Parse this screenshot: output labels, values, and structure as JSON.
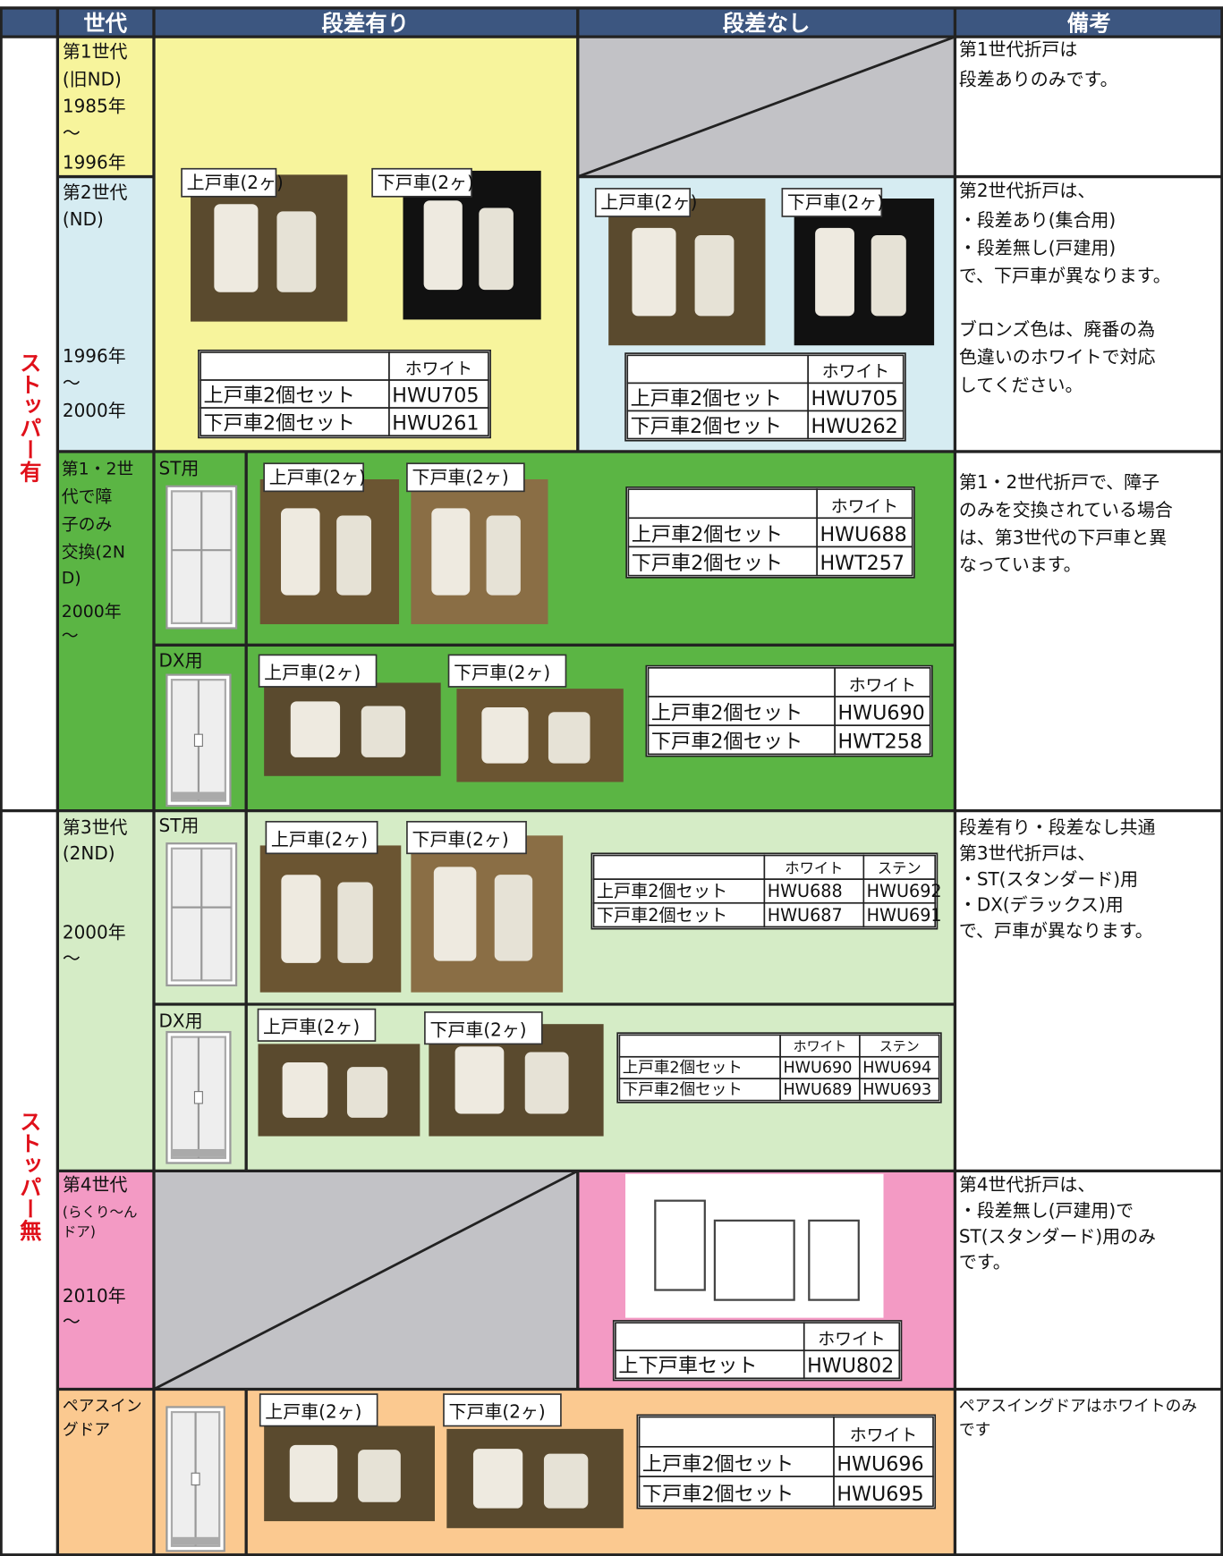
{
  "header": {
    "generation": "世代",
    "with_step": "段差有り",
    "without_step": "段差なし",
    "remarks": "備考"
  },
  "stopper": [
    "ストッパー有",
    "ストッパー無"
  ],
  "rows": [
    {
      "generation": [
        "第1世代",
        "(旧ND)",
        "1985年",
        "〜",
        "1996年"
      ],
      "remarks": [
        "第1世代折戸は",
        "段差ありのみです。"
      ]
    },
    {
      "generation": [
        "第2世代",
        "(ND)",
        "1996年",
        "〜",
        "2000年"
      ],
      "remarks": [
        "第2世代折戸は、",
        "・段差あり(集合用)",
        "・段差無し(戸建用)",
        "で、下戸車が異なります。",
        "ブロンズ色は、廃番の為",
        "色違いのホワイトで対応",
        "してください。"
      ],
      "with_step": {
        "labels": [
          "上戸車(2ヶ)",
          "下戸車(2ヶ)"
        ],
        "table": {
          "columns": [
            "ホワイト"
          ],
          "rows": [
            [
              "上戸車2個セット",
              "HWU705"
            ],
            [
              "下戸車2個セット",
              "HWU261"
            ]
          ]
        }
      },
      "without_step": {
        "labels": [
          "上戸車(2ヶ)",
          "下戸車(2ヶ)"
        ],
        "table": {
          "columns": [
            "ホワイト"
          ],
          "rows": [
            [
              "上戸車2個セット",
              "HWU705"
            ],
            [
              "下戸車2個セット",
              "HWU262"
            ]
          ]
        }
      }
    },
    {
      "generation": [
        "第1・2世",
        "代で障",
        "子のみ",
        "交換(2N",
        "D)",
        "2000年",
        "〜"
      ],
      "remarks": [
        "第1・2世代折戸で、障子",
        "のみを交換されている場合",
        "は、第3世代の下戸車と異",
        "なっています。"
      ],
      "variants": [
        {
          "name": "ST用",
          "labels": [
            "上戸車(2ヶ)",
            "下戸車(2ヶ)"
          ],
          "table": {
            "columns": [
              "ホワイト"
            ],
            "rows": [
              [
                "上戸車2個セット",
                "HWU688"
              ],
              [
                "下戸車2個セット",
                "HWT257"
              ]
            ]
          }
        },
        {
          "name": "DX用",
          "labels": [
            "上戸車(2ヶ)",
            "下戸車(2ヶ)"
          ],
          "table": {
            "columns": [
              "ホワイト"
            ],
            "rows": [
              [
                "上戸車2個セット",
                "HWU690"
              ],
              [
                "下戸車2個セット",
                "HWT258"
              ]
            ]
          }
        }
      ]
    },
    {
      "generation": [
        "第3世代",
        "(2ND)",
        "2000年",
        "〜"
      ],
      "remarks": [
        "段差有り・段差なし共通",
        "第3世代折戸は、",
        "・ST(スタンダード)用",
        "・DX(デラックス)用",
        "で、戸車が異なります。"
      ],
      "variants": [
        {
          "name": "ST用",
          "labels": [
            "上戸車(2ヶ)",
            "下戸車(2ヶ)"
          ],
          "table": {
            "columns": [
              "ホワイト",
              "ステン"
            ],
            "rows": [
              [
                "上戸車2個セット",
                "HWU688",
                "HWU692"
              ],
              [
                "下戸車2個セット",
                "HWU687",
                "HWU691"
              ]
            ]
          }
        },
        {
          "name": "DX用",
          "labels": [
            "上戸車(2ヶ)",
            "下戸車(2ヶ)"
          ],
          "table": {
            "columns": [
              "ホワイト",
              "ステン"
            ],
            "rows": [
              [
                "上戸車2個セット",
                "HWU690",
                "HWU694"
              ],
              [
                "下戸車2個セット",
                "HWU689",
                "HWU693"
              ]
            ]
          }
        }
      ]
    },
    {
      "generation": [
        "第4世代",
        "(らくり〜ん",
        "ドア)",
        "2010年",
        "〜"
      ],
      "remarks": [
        "第4世代折戸は、",
        "・段差無し(戸建用)で",
        "ST(スタンダード)用のみ",
        "です。"
      ],
      "without_step": {
        "table": {
          "columns": [
            "ホワイト"
          ],
          "rows": [
            [
              "上下戸車セット",
              "HWU802"
            ]
          ]
        }
      }
    },
    {
      "generation": [
        "ペアスイン",
        "グドア"
      ],
      "remarks": [
        "ペアスイングドアはホワイトのみ",
        "です"
      ],
      "labels": [
        "上戸車(2ヶ)",
        "下戸車(2ヶ)"
      ],
      "table": {
        "columns": [
          "ホワイト"
        ],
        "rows": [
          [
            "上戸車2個セット",
            "HWU696"
          ],
          [
            "下戸車2個セット",
            "HWU695"
          ]
        ]
      }
    }
  ]
}
